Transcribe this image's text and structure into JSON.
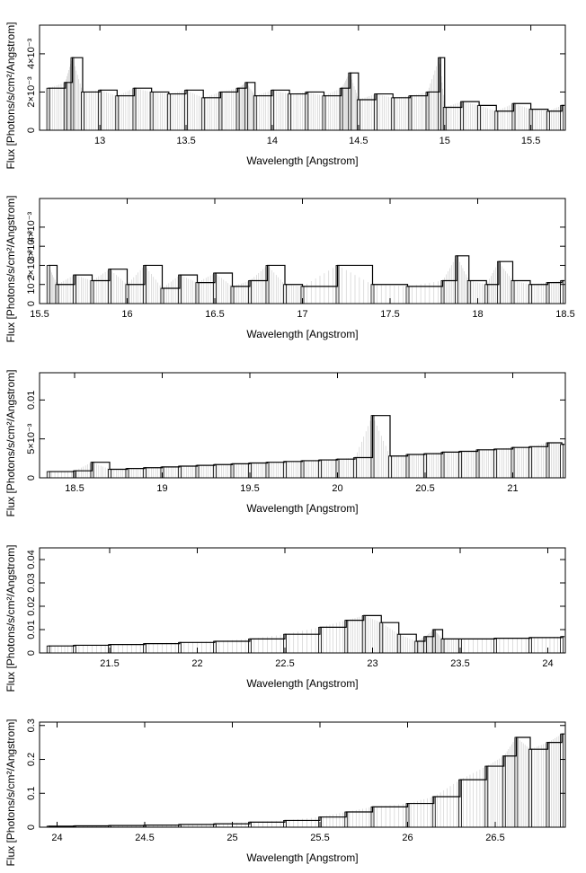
{
  "chart_data": [
    {
      "type": "line",
      "xlabel": "Wavelength [Angstrom]",
      "ylabel": "Flux [Photons/s/cm²/Angstrom]",
      "xlim": [
        12.65,
        15.7
      ],
      "ylim": [
        0,
        0.0055
      ],
      "xticks": [
        {
          "v": 13,
          "label": "13"
        },
        {
          "v": 13.5,
          "label": "13.5"
        },
        {
          "v": 14,
          "label": "14"
        },
        {
          "v": 14.5,
          "label": "14.5"
        },
        {
          "v": 15,
          "label": "15"
        },
        {
          "v": 15.5,
          "label": "15.5"
        }
      ],
      "yticks": [
        {
          "v": 0,
          "label": "0"
        },
        {
          "v": 0.002,
          "label": "2×10⁻³"
        },
        {
          "v": 0.004,
          "label": "4×10⁻³"
        }
      ],
      "ticks_extra_label": "×10⁻³",
      "series": [
        {
          "x": [
            12.7,
            12.8,
            12.84,
            12.9,
            13.0,
            13.1,
            13.2,
            13.3,
            13.4,
            13.5,
            13.6,
            13.7,
            13.8,
            13.85,
            13.9,
            14.0,
            14.1,
            14.2,
            14.3,
            14.4,
            14.45,
            14.5,
            14.6,
            14.7,
            14.8,
            14.9,
            14.97,
            15.0,
            15.1,
            15.2,
            15.3,
            15.4,
            15.5,
            15.6,
            15.68
          ],
          "y": [
            0.0022,
            0.0025,
            0.0038,
            0.002,
            0.0021,
            0.0018,
            0.0022,
            0.002,
            0.0019,
            0.0021,
            0.0017,
            0.002,
            0.0022,
            0.0025,
            0.0018,
            0.0021,
            0.0019,
            0.002,
            0.0018,
            0.0022,
            0.003,
            0.0016,
            0.0019,
            0.0017,
            0.0018,
            0.002,
            0.0038,
            0.0012,
            0.0015,
            0.0013,
            0.001,
            0.0014,
            0.0011,
            0.001,
            0.0013
          ]
        }
      ]
    },
    {
      "type": "line",
      "xlabel": "Wavelength [Angstrom]",
      "ylabel": "Flux [Photons/s/cm²/Angstrom]",
      "xlim": [
        15.5,
        18.5
      ],
      "ylim": [
        0,
        0.0055
      ],
      "xticks": [
        {
          "v": 15.5,
          "label": "15.5"
        },
        {
          "v": 16,
          "label": "16"
        },
        {
          "v": 16.5,
          "label": "16.5"
        },
        {
          "v": 17,
          "label": "17"
        },
        {
          "v": 17.5,
          "label": "17.5"
        },
        {
          "v": 18,
          "label": "18"
        },
        {
          "v": 18.5,
          "label": "18.5"
        }
      ],
      "yticks": [
        {
          "v": 0,
          "label": "0"
        },
        {
          "v": 0.001,
          "label": "10⁻³"
        },
        {
          "v": 0.002,
          "label": "2×10⁻³"
        },
        {
          "v": 0.003,
          "label": "3×10⁻³"
        },
        {
          "v": 0.004,
          "label": "4×10⁻³"
        }
      ],
      "series": [
        {
          "x": [
            15.55,
            15.6,
            15.7,
            15.8,
            15.9,
            16.0,
            16.1,
            16.2,
            16.3,
            16.4,
            16.5,
            16.6,
            16.7,
            16.8,
            16.9,
            17.0,
            17.2,
            17.4,
            17.6,
            17.8,
            17.88,
            17.95,
            18.05,
            18.12,
            18.2,
            18.3,
            18.4,
            18.48
          ],
          "y": [
            0.002,
            0.001,
            0.0015,
            0.0012,
            0.0018,
            0.001,
            0.002,
            0.0008,
            0.0015,
            0.0011,
            0.0016,
            0.0009,
            0.0012,
            0.002,
            0.001,
            0.0009,
            0.002,
            0.001,
            0.0009,
            0.0012,
            0.0025,
            0.0012,
            0.001,
            0.0022,
            0.0012,
            0.001,
            0.0011,
            0.0012
          ]
        }
      ]
    },
    {
      "type": "line",
      "xlabel": "Wavelength [Angstrom]",
      "ylabel": "Flux [Photons/s/cm²/Angstrom]",
      "xlim": [
        18.3,
        21.3
      ],
      "ylim": [
        0,
        0.0135
      ],
      "xticks": [
        {
          "v": 18.5,
          "label": "18.5"
        },
        {
          "v": 19,
          "label": "19"
        },
        {
          "v": 19.5,
          "label": "19.5"
        },
        {
          "v": 20,
          "label": "20"
        },
        {
          "v": 20.5,
          "label": "20.5"
        },
        {
          "v": 21,
          "label": "21"
        }
      ],
      "yticks": [
        {
          "v": 0,
          "label": "0"
        },
        {
          "v": 0.005,
          "label": "5×10⁻³"
        },
        {
          "v": 0.01,
          "label": "0.01"
        }
      ],
      "series": [
        {
          "x": [
            18.35,
            18.5,
            18.6,
            18.7,
            18.8,
            18.9,
            19.0,
            19.1,
            19.2,
            19.3,
            19.4,
            19.5,
            19.6,
            19.7,
            19.8,
            19.9,
            20.0,
            20.1,
            20.2,
            20.3,
            20.4,
            20.5,
            20.6,
            20.7,
            20.8,
            20.9,
            21.0,
            21.1,
            21.2,
            21.28
          ],
          "y": [
            0.0008,
            0.0009,
            0.002,
            0.0011,
            0.0012,
            0.0013,
            0.0014,
            0.0015,
            0.0016,
            0.0017,
            0.0018,
            0.0019,
            0.002,
            0.0021,
            0.0022,
            0.0023,
            0.0024,
            0.0026,
            0.008,
            0.0028,
            0.003,
            0.0031,
            0.0033,
            0.0034,
            0.0036,
            0.0037,
            0.0039,
            0.004,
            0.0045,
            0.0043
          ]
        }
      ]
    },
    {
      "type": "line",
      "xlabel": "Wavelength [Angstrom]",
      "ylabel": "Flux [Photons/s/cm²/Angstrom]",
      "xlim": [
        21.1,
        24.1
      ],
      "ylim": [
        0,
        0.045
      ],
      "xticks": [
        {
          "v": 21.5,
          "label": "21.5"
        },
        {
          "v": 22,
          "label": "22"
        },
        {
          "v": 22.5,
          "label": "22.5"
        },
        {
          "v": 23,
          "label": "23"
        },
        {
          "v": 23.5,
          "label": "23.5"
        },
        {
          "v": 24,
          "label": "24"
        }
      ],
      "yticks": [
        {
          "v": 0,
          "label": "0"
        },
        {
          "v": 0.01,
          "label": "0.01"
        },
        {
          "v": 0.02,
          "label": "0.02"
        },
        {
          "v": 0.03,
          "label": "0.03"
        },
        {
          "v": 0.04,
          "label": "0.04"
        }
      ],
      "series": [
        {
          "x": [
            21.15,
            21.3,
            21.5,
            21.7,
            21.9,
            22.1,
            22.3,
            22.5,
            22.7,
            22.85,
            22.95,
            23.05,
            23.15,
            23.25,
            23.3,
            23.35,
            23.4,
            23.5,
            23.7,
            23.9,
            24.08
          ],
          "y": [
            0.003,
            0.0033,
            0.0036,
            0.004,
            0.0045,
            0.005,
            0.006,
            0.008,
            0.011,
            0.014,
            0.016,
            0.013,
            0.008,
            0.005,
            0.007,
            0.01,
            0.006,
            0.006,
            0.0063,
            0.0066,
            0.007
          ]
        }
      ]
    },
    {
      "type": "line",
      "xlabel": "Wavelength [Angstrom]",
      "ylabel": "Flux [Photons/s/cm²/Angstrom]",
      "xlim": [
        23.9,
        26.9
      ],
      "ylim": [
        0,
        0.31
      ],
      "xticks": [
        {
          "v": 24,
          "label": "24"
        },
        {
          "v": 24.5,
          "label": "24.5"
        },
        {
          "v": 25,
          "label": "25"
        },
        {
          "v": 25.5,
          "label": "25.5"
        },
        {
          "v": 26,
          "label": "26"
        },
        {
          "v": 26.5,
          "label": "26.5"
        }
      ],
      "yticks": [
        {
          "v": 0,
          "label": "0"
        },
        {
          "v": 0.1,
          "label": "0.1"
        },
        {
          "v": 0.2,
          "label": "0.2"
        },
        {
          "v": 0.3,
          "label": "0.3"
        }
      ],
      "series": [
        {
          "x": [
            23.95,
            24.1,
            24.3,
            24.5,
            24.7,
            24.9,
            25.1,
            25.3,
            25.5,
            25.65,
            25.8,
            26.0,
            26.15,
            26.3,
            26.45,
            26.55,
            26.62,
            26.7,
            26.8,
            26.88
          ],
          "y": [
            0.003,
            0.004,
            0.005,
            0.006,
            0.008,
            0.01,
            0.015,
            0.02,
            0.03,
            0.045,
            0.06,
            0.07,
            0.09,
            0.14,
            0.18,
            0.21,
            0.265,
            0.23,
            0.25,
            0.275
          ]
        }
      ]
    }
  ]
}
